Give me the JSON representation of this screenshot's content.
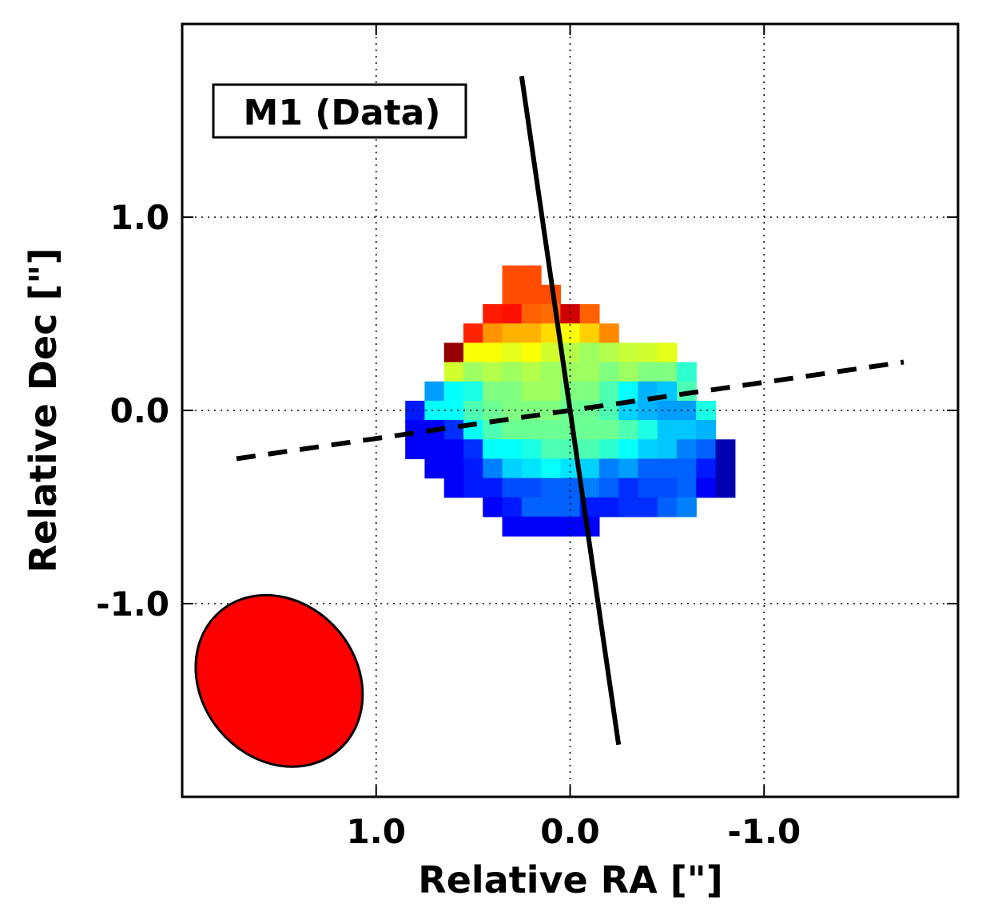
{
  "chart_data": {
    "type": "heatmap",
    "title": "",
    "panel_label": "M1 (Data)",
    "xlabel": "Relative RA [\"]",
    "ylabel": "Relative Dec [\"]",
    "xlim": [
      2.0,
      -2.0
    ],
    "ylim": [
      -2.0,
      2.0
    ],
    "x_inverted": true,
    "xticks": [
      1.0,
      0.0,
      -1.0
    ],
    "xtick_labels": [
      "1.0",
      "0.0",
      "-1.0"
    ],
    "yticks": [
      1.0,
      0.0,
      -1.0
    ],
    "ytick_labels": [
      "1.0",
      "0.0",
      "-1.0"
    ],
    "grid": true,
    "grid_style": "dotted",
    "colormap": "jet",
    "value_range": [
      0,
      1
    ],
    "pixel_size_arcsec": 0.1,
    "pixel_columns_ra": [
      0.8,
      0.7,
      0.6,
      0.5,
      0.4,
      0.3,
      0.2,
      0.1,
      0.0,
      -0.1,
      -0.2,
      -0.3,
      -0.4,
      -0.5,
      -0.6,
      -0.7,
      -0.8
    ],
    "pixel_rows_dec": [
      0.7,
      0.6,
      0.5,
      0.4,
      0.3,
      0.2,
      0.1,
      0.0,
      -0.1,
      -0.2,
      -0.3,
      -0.4,
      -0.5,
      -0.6,
      -0.7
    ],
    "pixel_values": [
      [
        null,
        null,
        null,
        null,
        null,
        0.8,
        0.8,
        null,
        null,
        null,
        null,
        null,
        null,
        null,
        null,
        null,
        null
      ],
      [
        null,
        null,
        null,
        null,
        null,
        0.8,
        0.8,
        0.8,
        null,
        null,
        null,
        null,
        null,
        null,
        null,
        null,
        null
      ],
      [
        null,
        null,
        null,
        null,
        0.85,
        0.86,
        0.78,
        0.77,
        0.92,
        0.78,
        null,
        null,
        null,
        null,
        null,
        null,
        null
      ],
      [
        null,
        null,
        null,
        0.84,
        0.73,
        0.7,
        0.7,
        0.66,
        0.62,
        0.67,
        0.74,
        null,
        null,
        null,
        null,
        null,
        null
      ],
      [
        null,
        null,
        0.98,
        0.62,
        0.62,
        0.6,
        0.62,
        0.58,
        0.55,
        0.53,
        0.55,
        0.57,
        0.58,
        0.6,
        null,
        null,
        null
      ],
      [
        null,
        null,
        0.58,
        0.53,
        0.55,
        0.53,
        0.55,
        0.53,
        0.53,
        0.53,
        0.5,
        0.53,
        0.5,
        0.5,
        0.42,
        null,
        null
      ],
      [
        null,
        0.28,
        0.38,
        0.4,
        0.5,
        0.5,
        0.53,
        0.53,
        0.5,
        0.5,
        0.45,
        0.38,
        0.3,
        0.32,
        0.45,
        null,
        null
      ],
      [
        0.15,
        0.38,
        0.38,
        0.45,
        0.48,
        0.5,
        0.5,
        0.5,
        0.48,
        0.48,
        0.45,
        0.33,
        0.3,
        0.28,
        0.28,
        0.4,
        null
      ],
      [
        0.12,
        0.12,
        0.17,
        0.38,
        0.45,
        0.48,
        0.48,
        0.48,
        0.48,
        0.48,
        0.48,
        0.45,
        0.4,
        0.32,
        0.32,
        0.3,
        null
      ],
      [
        0.12,
        0.12,
        0.12,
        0.17,
        0.38,
        0.38,
        0.4,
        0.45,
        0.45,
        0.45,
        0.42,
        0.38,
        0.33,
        0.32,
        0.25,
        0.22,
        0.05
      ],
      [
        null,
        0.12,
        0.12,
        0.15,
        0.25,
        0.33,
        0.35,
        0.38,
        0.35,
        0.33,
        0.25,
        0.28,
        0.22,
        0.22,
        0.22,
        0.15,
        0.05
      ],
      [
        null,
        null,
        0.12,
        0.15,
        0.15,
        0.2,
        0.2,
        0.22,
        0.22,
        0.25,
        0.22,
        0.17,
        0.2,
        0.2,
        0.22,
        0.12,
        0.05
      ],
      [
        null,
        null,
        null,
        null,
        0.12,
        0.15,
        0.22,
        0.22,
        0.22,
        0.15,
        0.15,
        0.17,
        0.17,
        0.22,
        0.25,
        null,
        null
      ],
      [
        null,
        null,
        null,
        null,
        null,
        0.12,
        0.12,
        0.12,
        0.12,
        0.12,
        null,
        null,
        null,
        null,
        null,
        null,
        null
      ],
      [
        null,
        null,
        null,
        null,
        null,
        null,
        null,
        null,
        null,
        null,
        null,
        null,
        null,
        null,
        null,
        null,
        null
      ]
    ],
    "solid_line": {
      "style": "solid",
      "color": "#000000",
      "ra": [
        0.25,
        -0.25
      ],
      "dec": [
        1.73,
        -1.73
      ]
    },
    "dashed_line": {
      "style": "dashed",
      "color": "#000000",
      "ra": [
        1.72,
        -1.72
      ],
      "dec": [
        -0.25,
        0.25
      ]
    },
    "beam": {
      "center_ra": 1.5,
      "center_dec": -1.4,
      "semi_major": 0.47,
      "semi_minor": 0.4,
      "angle_deg": 50,
      "fill": "#ff0000",
      "edge": "#000000"
    },
    "frame_color": "#000000",
    "grid_color": "#000000"
  }
}
